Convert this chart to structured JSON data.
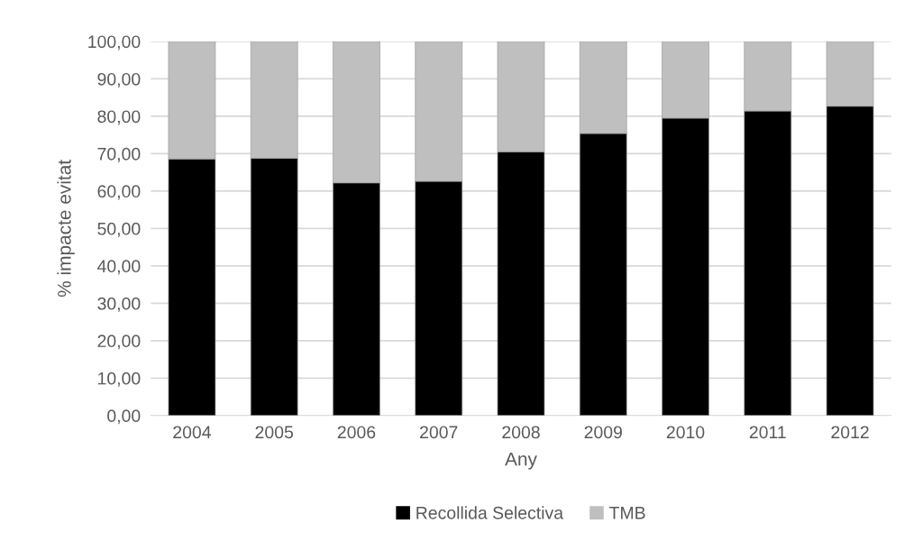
{
  "chart_data": {
    "type": "bar",
    "stacked": true,
    "xlabel": "Any",
    "ylabel": "% impacte evitat",
    "categories": [
      "2004",
      "2005",
      "2006",
      "2007",
      "2008",
      "2009",
      "2010",
      "2011",
      "2012"
    ],
    "series": [
      {
        "name": "Recollida Selectiva",
        "color": "#000000",
        "values": [
          68.6,
          68.8,
          62.2,
          62.6,
          70.5,
          75.4,
          79.5,
          81.4,
          82.7
        ]
      },
      {
        "name": "TMB",
        "color": "#bfbfbf",
        "values": [
          31.4,
          31.2,
          37.8,
          37.4,
          29.5,
          24.6,
          20.5,
          18.6,
          17.3
        ]
      }
    ],
    "ylim": [
      0,
      100
    ],
    "yticks": [
      {
        "value": 0,
        "label": "0,00"
      },
      {
        "value": 10,
        "label": "10,00"
      },
      {
        "value": 20,
        "label": "20,00"
      },
      {
        "value": 30,
        "label": "30,00"
      },
      {
        "value": 40,
        "label": "40,00"
      },
      {
        "value": 50,
        "label": "50,00"
      },
      {
        "value": 60,
        "label": "60,00"
      },
      {
        "value": 70,
        "label": "70,00"
      },
      {
        "value": 80,
        "label": "80,00"
      },
      {
        "value": 90,
        "label": "90,00"
      },
      {
        "value": 100,
        "label": "100,00"
      }
    ],
    "grid": "y",
    "legend": "bottom"
  }
}
